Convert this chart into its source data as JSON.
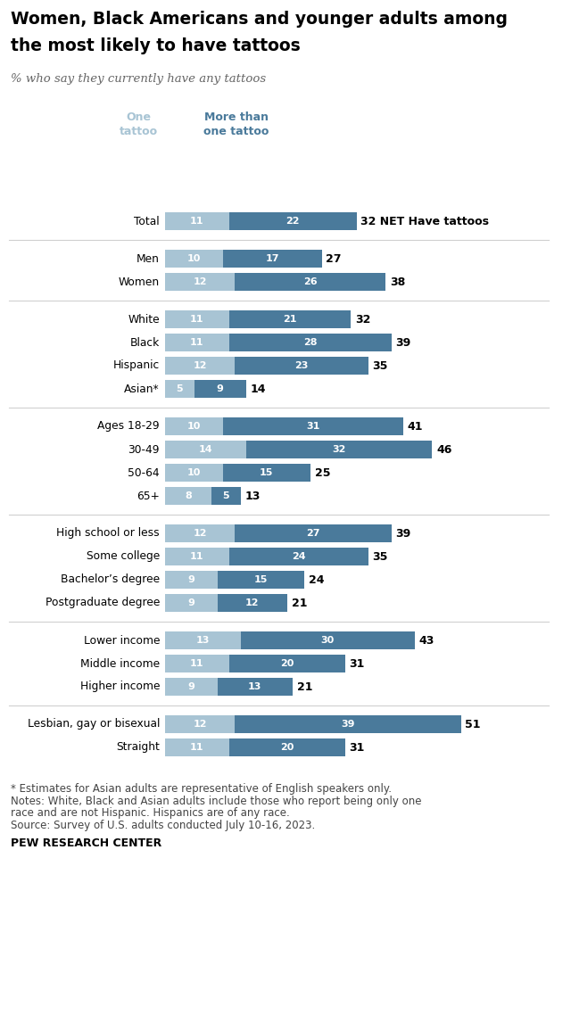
{
  "title_line1": "Women, Black Americans and younger adults among",
  "title_line2": "the most likely to have tattoos",
  "subtitle": "% who say they currently have any tattoos",
  "color_one": "#a8c4d4",
  "color_more": "#4a7a9b",
  "footnote1": "* Estimates for Asian adults are representative of English speakers only.",
  "footnote2": "Notes: White, Black and Asian adults include those who report being only one",
  "footnote2b": "race and are not Hispanic. Hispanics are of any race.",
  "footnote3": "Source: Survey of U.S. adults conducted July 10-16, 2023.",
  "footer": "PEW RESEARCH CENTER",
  "categories": [
    "Total",
    "Men",
    "Women",
    "White",
    "Black",
    "Hispanic",
    "Asian*",
    "Ages 18-29",
    "30-49",
    "50-64",
    "65+",
    "High school or less",
    "Some college",
    "Bachelor’s degree",
    "Postgraduate degree",
    "Lower income",
    "Middle income",
    "Higher income",
    "Lesbian, gay or bisexual",
    "Straight"
  ],
  "one_tattoo": [
    11,
    10,
    12,
    11,
    11,
    12,
    5,
    10,
    14,
    10,
    8,
    12,
    11,
    9,
    9,
    13,
    11,
    9,
    12,
    11
  ],
  "more_tattoo": [
    22,
    17,
    26,
    21,
    28,
    23,
    9,
    31,
    32,
    15,
    5,
    27,
    24,
    15,
    12,
    30,
    20,
    13,
    39,
    20
  ],
  "net": [
    32,
    27,
    38,
    32,
    39,
    35,
    14,
    41,
    46,
    25,
    13,
    39,
    35,
    24,
    21,
    43,
    31,
    21,
    51,
    31
  ],
  "group_starts": [
    0,
    1,
    3,
    7,
    11,
    15,
    18
  ],
  "group_ends": [
    1,
    3,
    7,
    11,
    15,
    18,
    20
  ]
}
